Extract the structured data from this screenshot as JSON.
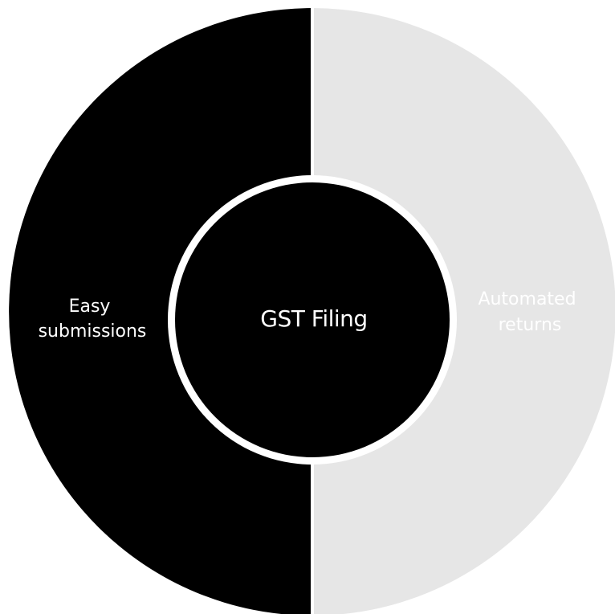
{
  "diagram": {
    "center_label": "GST Filing",
    "segments": [
      {
        "label_lines": [
          "Easy",
          "submissions"
        ],
        "color": "#000000",
        "text_color": "#ffffff"
      },
      {
        "label_lines": [
          "Automated",
          "returns"
        ],
        "color": "#e6e6e6",
        "text_color": "#ffffff"
      }
    ],
    "center_color": "#000000",
    "center_text_color": "#ffffff",
    "separator_color": "#ffffff"
  }
}
